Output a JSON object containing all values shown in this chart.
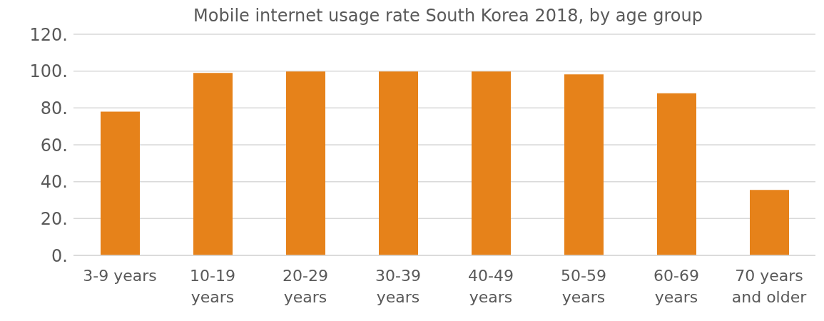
{
  "chart_data": {
    "type": "bar",
    "title": "Mobile internet usage rate South Korea 2018, by age group",
    "categories": [
      "3-9 years",
      "10-19 years",
      "20-29 years",
      "30-39 years",
      "40-49 years",
      "50-59 years",
      "60-69 years",
      "70 years and older"
    ],
    "values": [
      78,
      99,
      99.8,
      99.8,
      99.8,
      98.2,
      88,
      35.5
    ],
    "color": "#e6821a",
    "ylim": [
      0,
      120
    ],
    "yticks": [
      {
        "value": 0,
        "label": "0."
      },
      {
        "value": 20,
        "label": "20."
      },
      {
        "value": 40,
        "label": "40."
      },
      {
        "value": 60,
        "label": "60."
      },
      {
        "value": 80,
        "label": "80."
      },
      {
        "value": 100,
        "label": "100."
      },
      {
        "value": 120,
        "label": "120."
      }
    ],
    "grid": "y"
  }
}
